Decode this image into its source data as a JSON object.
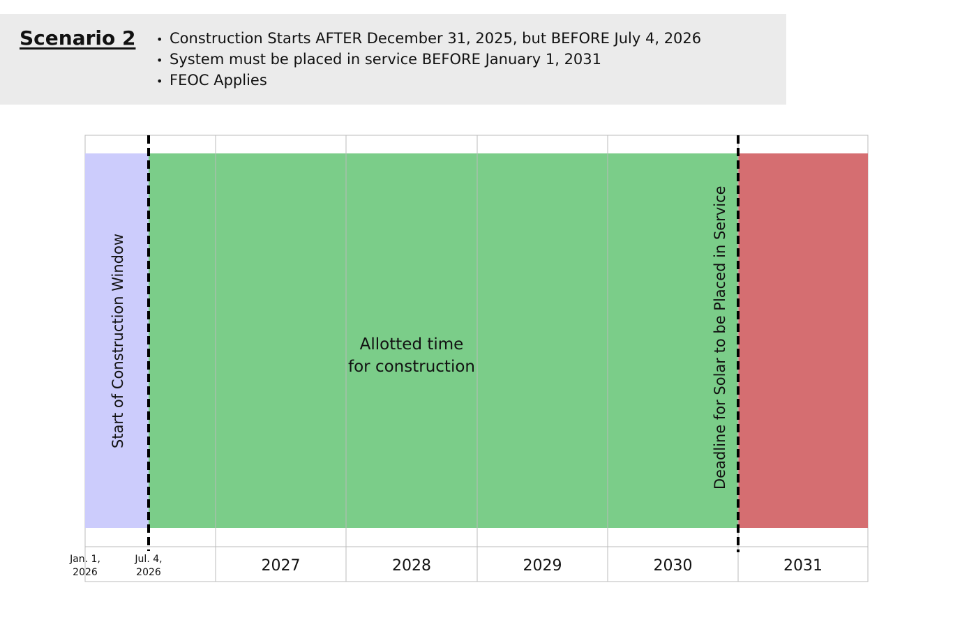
{
  "header": {
    "title": "Scenario 2",
    "bullets": [
      "Construction Starts AFTER December 31, 2025, but BEFORE July 4, 2026",
      "System must be placed in service BEFORE January 1, 2031",
      "FEOC Applies"
    ]
  },
  "timeline": {
    "colors": {
      "start_window": "#ccccfc",
      "construction": "#7bcd89",
      "after_deadline": "#d56e71",
      "grid": "#bbbbbb",
      "marker": "#000000"
    },
    "start_window_label": "Start of Construction Window",
    "construction_label_line1": "Allotted time",
    "construction_label_line2": "for construction",
    "deadline_label": "Deadline for Solar to be Placed in Service",
    "start_date": {
      "line1": "Jan. 1,",
      "line2": "2026"
    },
    "marker_date": {
      "line1": "Jul. 4,",
      "line2": "2026"
    },
    "years": [
      "2027",
      "2028",
      "2029",
      "2030",
      "2031"
    ]
  }
}
